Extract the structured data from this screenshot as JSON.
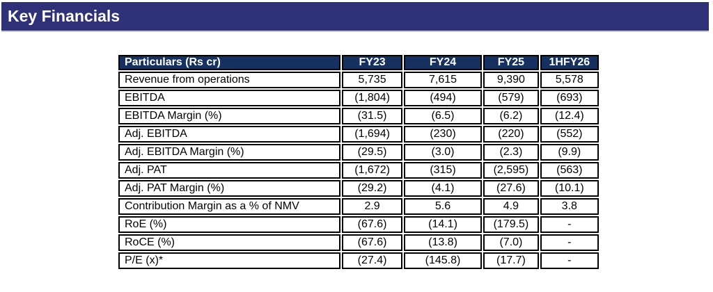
{
  "header": {
    "title": "Key Financials"
  },
  "colors": {
    "title_bar_bg": "#2e3078",
    "table_header_bg": "#16315f",
    "table_border": "#000000",
    "header_text": "#ffffff",
    "body_text": "#000000",
    "page_bg": "#ffffff"
  },
  "table": {
    "columns": [
      "Particulars (Rs cr)",
      "FY23",
      "FY24",
      "FY25",
      "1HFY26"
    ],
    "rows": [
      {
        "label": "Revenue from operations",
        "values": [
          "5,735",
          "7,615",
          "9,390",
          "5,578"
        ]
      },
      {
        "label": "EBITDA",
        "values": [
          "(1,804)",
          "(494)",
          "(579)",
          "(693)"
        ]
      },
      {
        "label": "EBITDA Margin (%)",
        "values": [
          "(31.5)",
          "(6.5)",
          "(6.2)",
          "(12.4)"
        ]
      },
      {
        "label": "Adj. EBITDA",
        "values": [
          "(1,694)",
          "(230)",
          "(220)",
          "(552)"
        ]
      },
      {
        "label": "Adj. EBITDA Margin (%)",
        "values": [
          "(29.5)",
          "(3.0)",
          "(2.3)",
          "(9.9)"
        ]
      },
      {
        "label": "Adj. PAT",
        "values": [
          "(1,672)",
          "(315)",
          "(2,595)",
          "(563)"
        ]
      },
      {
        "label": "Adj. PAT Margin (%)",
        "values": [
          "(29.2)",
          "(4.1)",
          "(27.6)",
          "(10.1)"
        ]
      },
      {
        "label": "Contribution Margin as a % of NMV",
        "values": [
          "2.9",
          "5.6",
          "4.9",
          "3.8"
        ]
      },
      {
        "label": "RoE (%)",
        "values": [
          "(67.6)",
          "(14.1)",
          "(179.5)",
          "-"
        ]
      },
      {
        "label": "RoCE (%)",
        "values": [
          "(67.6)",
          "(13.8)",
          "(7.0)",
          "-"
        ]
      },
      {
        "label": "P/E (x)*",
        "values": [
          "(27.4)",
          "(145.8)",
          "(17.7)",
          "-"
        ]
      }
    ]
  }
}
